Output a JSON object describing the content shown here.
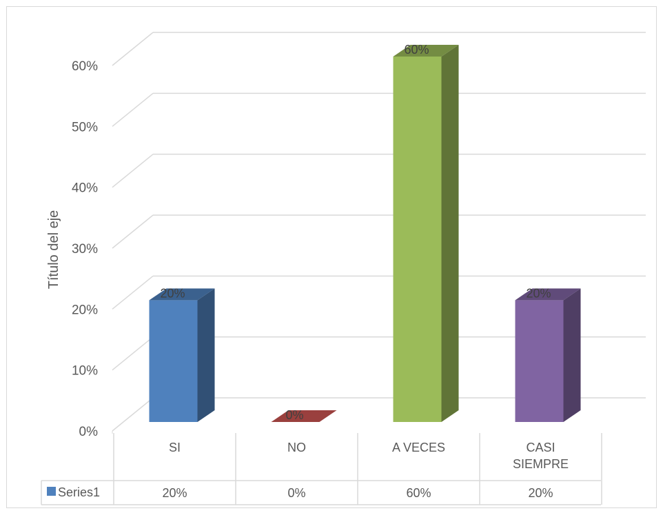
{
  "chart_data": {
    "type": "bar",
    "style": "3d-clustered-column",
    "categories": [
      "SI",
      "NO",
      "A VECES",
      "CASI SIEMPRE"
    ],
    "category_lines": [
      [
        "SI"
      ],
      [
        "NO"
      ],
      [
        "A VECES"
      ],
      [
        "CASI",
        "SIEMPRE"
      ]
    ],
    "series": [
      {
        "name": "Series1",
        "values": [
          0.2,
          0.0,
          0.6,
          0.2
        ]
      }
    ],
    "data_labels": [
      "20%",
      "0%",
      "60%",
      "20%"
    ],
    "ylabel": "Título del eje",
    "xlabel": "",
    "ylim": [
      0,
      0.6
    ],
    "yticks": [
      0,
      0.1,
      0.2,
      0.3,
      0.4,
      0.5,
      0.6
    ],
    "ytick_labels": [
      "0%",
      "10%",
      "20%",
      "30%",
      "40%",
      "50%",
      "60%"
    ],
    "grid": true,
    "legend": "data-table",
    "data_table": {
      "legend_label": "Series1",
      "values": [
        "20%",
        "0%",
        "60%",
        "20%"
      ]
    },
    "colors": {
      "point_colors": [
        "#4f81bd",
        "#c0504d",
        "#9bbb59",
        "#8064a2"
      ],
      "grid": "#d9d9d9",
      "text": "#595959"
    }
  }
}
